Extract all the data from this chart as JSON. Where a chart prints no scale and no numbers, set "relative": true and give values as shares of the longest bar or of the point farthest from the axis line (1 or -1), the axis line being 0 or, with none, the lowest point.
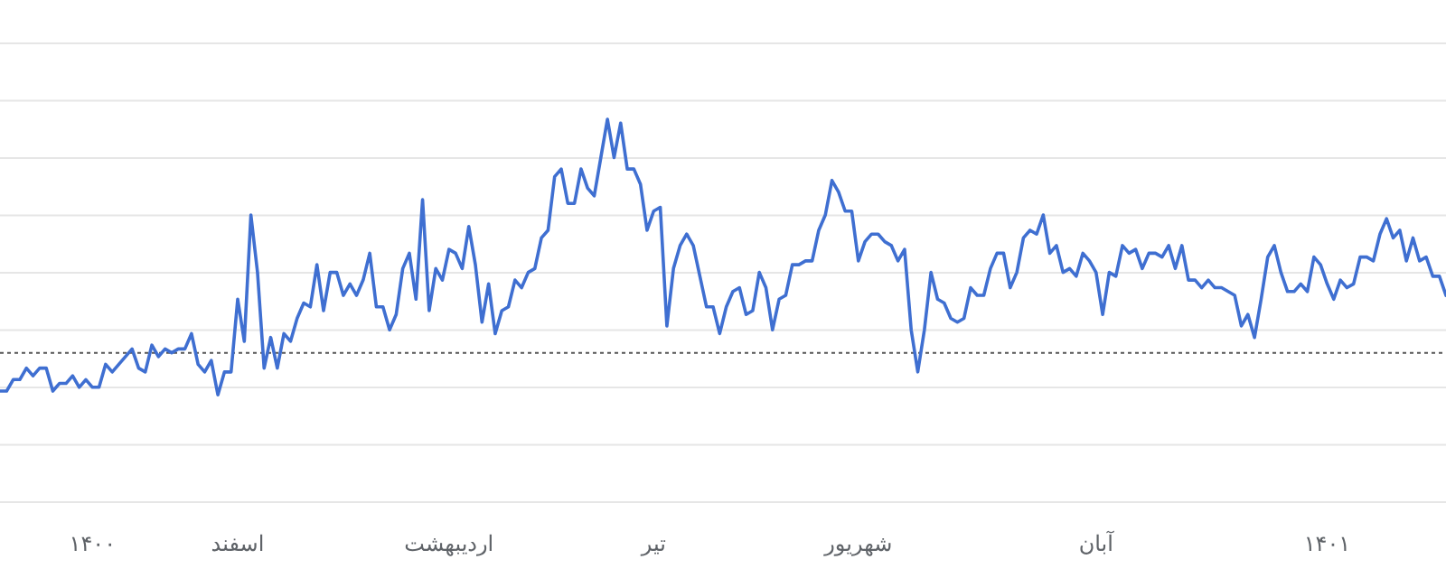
{
  "chart_data": {
    "type": "line",
    "relative": true,
    "grid": true,
    "categories": [
      null,
      null,
      null,
      null,
      null,
      null,
      null,
      null,
      null,
      null,
      null,
      null,
      null,
      null,
      "۱۴۰۰",
      null,
      null,
      null,
      null,
      null,
      null,
      null,
      null,
      null,
      null,
      null,
      null,
      null,
      null,
      null,
      null,
      null,
      null,
      null,
      null,
      null,
      "اسفند",
      null,
      null,
      null,
      null,
      null,
      null,
      null,
      null,
      null,
      null,
      null,
      null,
      null,
      null,
      null,
      null,
      null,
      null,
      null,
      null,
      null,
      null,
      null,
      null,
      null,
      null,
      null,
      null,
      null,
      null,
      null,
      "اردیبهشت",
      null,
      null,
      null,
      null,
      null,
      null,
      null,
      null,
      null,
      null,
      null,
      null,
      null,
      null,
      null,
      null,
      null,
      null,
      null,
      null,
      null,
      null,
      null,
      null,
      null,
      null,
      null,
      null,
      null,
      null,
      "تیر",
      null,
      null,
      null,
      null,
      null,
      null,
      null,
      null,
      null,
      null,
      null,
      null,
      null,
      null,
      null,
      null,
      null,
      null,
      null,
      null,
      null,
      null,
      null,
      null,
      null,
      null,
      null,
      null,
      null,
      null,
      "شهریور",
      null,
      null,
      null,
      null,
      null,
      null,
      null,
      null,
      null,
      null,
      null,
      null,
      null,
      null,
      null,
      null,
      null,
      null,
      null,
      null,
      null,
      null,
      null,
      null,
      null,
      null,
      null,
      null,
      null,
      null,
      null,
      null,
      null,
      null,
      null,
      "آبان",
      null,
      null,
      null,
      null,
      null,
      null,
      null,
      null,
      null,
      null,
      null,
      null,
      null,
      null,
      null,
      null,
      null,
      null,
      null,
      null,
      null,
      null,
      null,
      null,
      null,
      null,
      null,
      null,
      null,
      null,
      null,
      null,
      null,
      null,
      "۱۴۰۱",
      null,
      null,
      null,
      null,
      null,
      null,
      null,
      null,
      null,
      null,
      null,
      null,
      null,
      null,
      null,
      null,
      null,
      null
    ],
    "series": [
      {
        "color": "#3f6fd1",
        "values": [
          0.29,
          0.29,
          0.32,
          0.32,
          0.35,
          0.33,
          0.35,
          0.35,
          0.29,
          0.31,
          0.31,
          0.33,
          0.3,
          0.32,
          0.3,
          0.3,
          0.36,
          0.34,
          0.36,
          0.38,
          0.4,
          0.35,
          0.34,
          0.41,
          0.38,
          0.4,
          0.39,
          0.4,
          0.4,
          0.44,
          0.36,
          0.34,
          0.37,
          0.28,
          0.34,
          0.34,
          0.53,
          0.42,
          0.75,
          0.6,
          0.35,
          0.43,
          0.35,
          0.44,
          0.42,
          0.48,
          0.52,
          0.51,
          0.62,
          0.5,
          0.6,
          0.6,
          0.54,
          0.57,
          0.54,
          0.58,
          0.65,
          0.51,
          0.51,
          0.45,
          0.49,
          0.61,
          0.65,
          0.53,
          0.79,
          0.5,
          0.61,
          0.58,
          0.66,
          0.65,
          0.61,
          0.72,
          0.62,
          0.47,
          0.57,
          0.44,
          0.5,
          0.51,
          0.58,
          0.56,
          0.6,
          0.61,
          0.69,
          0.71,
          0.85,
          0.87,
          0.78,
          0.78,
          0.87,
          0.82,
          0.8,
          0.9,
          1.0,
          0.9,
          0.99,
          0.87,
          0.87,
          0.83,
          0.71,
          0.76,
          0.77,
          0.46,
          0.61,
          0.67,
          0.7,
          0.67,
          0.59,
          0.51,
          0.51,
          0.44,
          0.51,
          0.55,
          0.56,
          0.49,
          0.5,
          0.6,
          0.56,
          0.45,
          0.53,
          0.54,
          0.62,
          0.62,
          0.63,
          0.63,
          0.71,
          0.75,
          0.84,
          0.81,
          0.76,
          0.76,
          0.63,
          0.68,
          0.7,
          0.7,
          0.68,
          0.67,
          0.63,
          0.66,
          0.45,
          0.34,
          0.45,
          0.6,
          0.53,
          0.52,
          0.48,
          0.47,
          0.48,
          0.56,
          0.54,
          0.54,
          0.61,
          0.65,
          0.65,
          0.56,
          0.6,
          0.69,
          0.71,
          0.7,
          0.75,
          0.65,
          0.67,
          0.6,
          0.61,
          0.59,
          0.65,
          0.63,
          0.6,
          0.49,
          0.6,
          0.59,
          0.67,
          0.65,
          0.66,
          0.61,
          0.65,
          0.65,
          0.64,
          0.67,
          0.61,
          0.67,
          0.58,
          0.58,
          0.56,
          0.58,
          0.56,
          0.56,
          0.55,
          0.54,
          0.46,
          0.49,
          0.43,
          0.53,
          0.64,
          0.67,
          0.6,
          0.55,
          0.55,
          0.57,
          0.55,
          0.64,
          0.62,
          0.57,
          0.53,
          0.58,
          0.56,
          0.57,
          0.64,
          0.64,
          0.63,
          0.7,
          0.74,
          0.69,
          0.71,
          0.63,
          0.69,
          0.63,
          0.64,
          0.59,
          0.59,
          0.54
        ]
      }
    ],
    "ref_lines": [
      {
        "axis": "y",
        "value": 0.39,
        "color": "#555555",
        "line_style": "dotted"
      }
    ]
  }
}
